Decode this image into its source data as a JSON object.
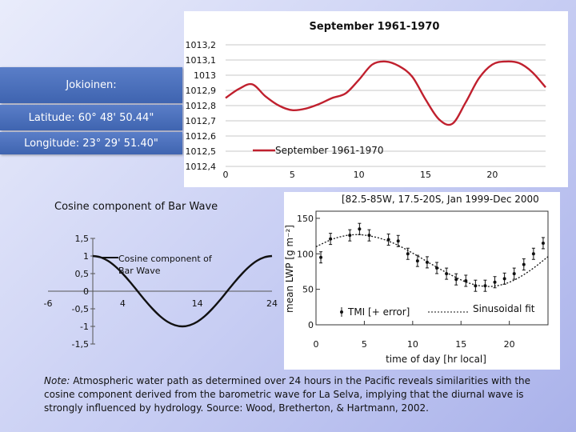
{
  "info": {
    "location": "Jokioinen:",
    "latitude": "Latitude: 60° 48' 50.44\"",
    "longitude": "Longitude: 23° 29' 51.40\""
  },
  "colors": {
    "pressure_line": "#c0202e",
    "info_box": "#4a6fbe",
    "cosine_line": "#111111",
    "grid": "#bfbfbf"
  },
  "note": {
    "prefix": "Note:",
    "text": " Atmospheric water path as determined over 24 hours in the Pacific reveals similarities with the cosine component derived from the barometric wave for La Selva, implying that the diurnal wave is strongly influenced by hydrology. Source: Wood, Bretherton, & Hartmann, 2002."
  },
  "chart_data": [
    {
      "type": "line",
      "title": "September 1961-1970",
      "xlabel": "",
      "ylabel": "",
      "x_ticks": [
        "0",
        "5",
        "10",
        "15",
        "20"
      ],
      "y_ticks": [
        "1013,2",
        "1013,1",
        "1013",
        "1012,9",
        "1012,8",
        "1012,7",
        "1012,6",
        "1012,5",
        "1012,4"
      ],
      "xlim": [
        0,
        24
      ],
      "ylim": [
        1012.4,
        1013.2
      ],
      "grid": "horizontal",
      "legend_position": "bottom-right",
      "series": [
        {
          "name": "September 1961-1970",
          "x": [
            0,
            1,
            2,
            3,
            4,
            5,
            6,
            7,
            8,
            9,
            10,
            11,
            12,
            13,
            14,
            15,
            16,
            17,
            18,
            19,
            20,
            21,
            22,
            23,
            24
          ],
          "y": [
            1012.85,
            1012.91,
            1012.94,
            1012.86,
            1012.8,
            1012.77,
            1012.78,
            1012.81,
            1012.85,
            1012.88,
            1012.97,
            1013.07,
            1013.09,
            1013.06,
            1012.99,
            1012.84,
            1012.71,
            1012.68,
            1012.82,
            1012.98,
            1013.07,
            1013.09,
            1013.08,
            1013.02,
            1012.92
          ]
        }
      ]
    },
    {
      "type": "line",
      "title": "Cosine component of Bar Wave",
      "xlabel": "",
      "ylabel": "",
      "x_ticks": [
        "-6",
        "4",
        "14",
        "24"
      ],
      "y_ticks": [
        "1,5",
        "1",
        "0,5",
        "0",
        "-0,5",
        "-1",
        "-1,5"
      ],
      "xlim": [
        -6,
        24
      ],
      "ylim": [
        -1.5,
        1.5
      ],
      "grid": "off",
      "legend_position": "top-center",
      "series": [
        {
          "name": "Cosine component of Bar Wave",
          "x": [
            0,
            1,
            2,
            3,
            4,
            5,
            6,
            7,
            8,
            9,
            10,
            11,
            12,
            13,
            14,
            15,
            16,
            17,
            18,
            19,
            20,
            21,
            22,
            23,
            24
          ],
          "y": [
            1.0,
            0.966,
            0.866,
            0.707,
            0.5,
            0.259,
            0.0,
            -0.259,
            -0.5,
            -0.707,
            -0.866,
            -0.966,
            -1.0,
            -0.966,
            -0.866,
            -0.707,
            -0.5,
            -0.259,
            0.0,
            0.259,
            0.5,
            0.707,
            0.866,
            0.966,
            1.0
          ]
        }
      ]
    },
    {
      "type": "scatter",
      "title": "[82.5-85W, 17.5-20S, Jan 1999-Dec 2000",
      "xlabel": "time of day [hr local]",
      "ylabel": "mean LWP [g m⁻²]",
      "x_ticks": [
        "0",
        "5",
        "10",
        "15",
        "20"
      ],
      "y_ticks": [
        "150",
        "100",
        "50",
        "0"
      ],
      "xlim": [
        0,
        24
      ],
      "ylim": [
        0,
        160
      ],
      "grid": "off",
      "legend_position": "bottom",
      "series": [
        {
          "name": "TMI [+ error]",
          "x": [
            0.5,
            1.5,
            3.5,
            4.5,
            5.5,
            7.5,
            8.5,
            9.5,
            10.5,
            11.5,
            12.5,
            13.5,
            14.5,
            15.5,
            16.5,
            17.5,
            18.5,
            19.5,
            20.5,
            21.5,
            22.5,
            23.5
          ],
          "y": [
            95,
            121,
            126,
            135,
            126,
            120,
            118,
            100,
            90,
            88,
            80,
            72,
            64,
            62,
            55,
            55,
            60,
            65,
            72,
            85,
            100,
            115
          ]
        },
        {
          "name": "Sinusoidal fit",
          "x": [
            0,
            2,
            4,
            6,
            8,
            10,
            12,
            14,
            16,
            18,
            20,
            22,
            24
          ],
          "y": [
            110,
            122,
            127,
            124,
            115,
            101,
            85,
            70,
            58,
            54,
            60,
            75,
            96
          ]
        }
      ]
    }
  ]
}
